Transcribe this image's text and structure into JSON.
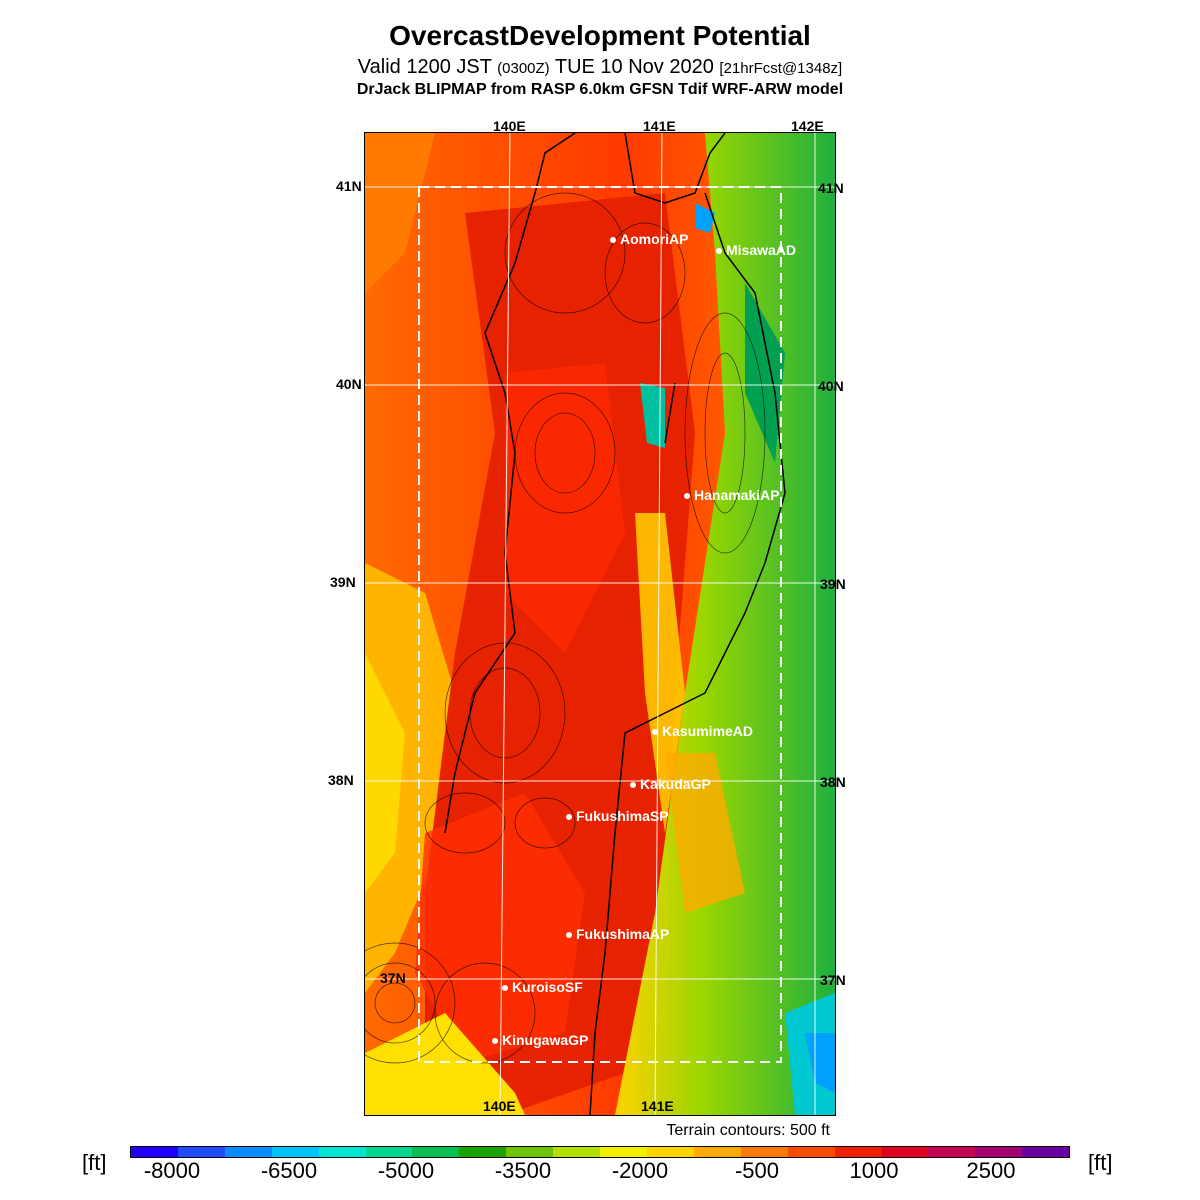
{
  "header": {
    "title": "OvercastDevelopment Potential",
    "valid_prefix": "Valid 1200 JST",
    "valid_zulu": "(0300Z)",
    "valid_date": "TUE 10 Nov 2020",
    "forecast": "[21hrFcst@1348z]",
    "model_line": "DrJack BLIPMAP from RASP 6.0km GFSN Tdif WRF-ARW model"
  },
  "axes": {
    "lon_top": [
      "140E",
      "141E",
      "142E"
    ],
    "lon_bottom": [
      "140E",
      "141E"
    ],
    "lat_left": [
      "41N",
      "40N",
      "39N",
      "38N",
      "37N"
    ],
    "lat_right": [
      "41N",
      "40N",
      "39N",
      "38N",
      "37N"
    ]
  },
  "cities": [
    {
      "name": "AomoriAP"
    },
    {
      "name": "MisawaAD"
    },
    {
      "name": "HanamakiAP"
    },
    {
      "name": "KasumimeAD"
    },
    {
      "name": "KakudaGP"
    },
    {
      "name": "FukushimaSP"
    },
    {
      "name": "FukushimaAP"
    },
    {
      "name": "KuroisoSF"
    },
    {
      "name": "KinugawaGP"
    }
  ],
  "terrain_note": "Terrain contours: 500 ft",
  "colorbar": {
    "unit": "[ft]",
    "ticks": [
      "-8000",
      "-6500",
      "-5000",
      "-3500",
      "-2000",
      "-500",
      "1000",
      "2500"
    ],
    "colors": [
      "#1f00ff",
      "#1f4cff",
      "#0a8cff",
      "#00c6ff",
      "#00e6d2",
      "#00d68c",
      "#00c050",
      "#1aa000",
      "#6cc300",
      "#b4e000",
      "#f0f000",
      "#ffd200",
      "#ffaa00",
      "#ff7800",
      "#ff4a00",
      "#f01e00",
      "#e00020",
      "#c80050",
      "#a00070",
      "#6a00a0"
    ]
  },
  "legend_colors": {
    "background_low": "#ff5a00",
    "max": "#e61e00",
    "min": "#00c850"
  }
}
